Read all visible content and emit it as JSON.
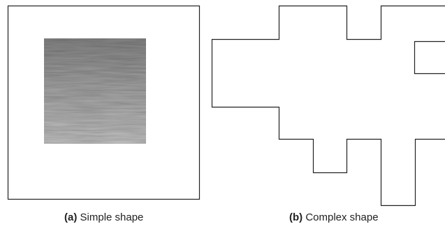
{
  "figure": {
    "panel_a": {
      "tag": "(a)",
      "caption": "Simple shape"
    },
    "panel_b": {
      "tag": "(b)",
      "caption": "Complex shape"
    }
  },
  "colors": {
    "outline": "#222222",
    "texture_dark": "#7c7c7c",
    "texture_light": "#d6d6d6"
  }
}
